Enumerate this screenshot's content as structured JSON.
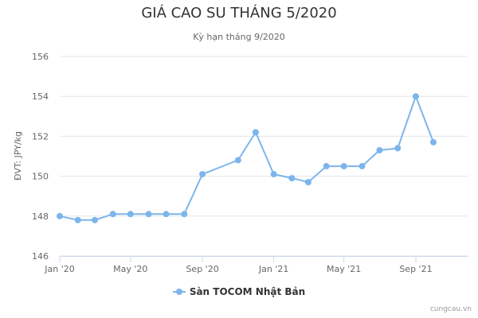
{
  "chart_data": {
    "type": "line",
    "title": "GIÁ CAO SU THÁNG 5/2020",
    "subtitle": "Kỳ hạn tháng 9/2020",
    "ylabel": "ĐVT: JPY/kg",
    "ylim": [
      146,
      156
    ],
    "yticks": [
      146,
      148,
      150,
      152,
      154,
      156
    ],
    "xlim": [
      "2020-01-01",
      "2021-11-30"
    ],
    "xticks": [
      {
        "date": "2020-01-01",
        "label": "Jan '20"
      },
      {
        "date": "2020-05-01",
        "label": "May '20"
      },
      {
        "date": "2020-09-01",
        "label": "Sep '20"
      },
      {
        "date": "2021-01-01",
        "label": "Jan '21"
      },
      {
        "date": "2021-05-01",
        "label": "May '21"
      },
      {
        "date": "2021-09-01",
        "label": "Sep '21"
      }
    ],
    "grid": true,
    "legend_position": "bottom",
    "color": "#7cb5ec",
    "series": [
      {
        "name": "Sàn TOCOM Nhật Bản",
        "points": [
          {
            "x": "2020-01-01",
            "y": 148.0
          },
          {
            "x": "2020-02-01",
            "y": 147.8
          },
          {
            "x": "2020-03-01",
            "y": 147.8
          },
          {
            "x": "2020-04-01",
            "y": 148.1
          },
          {
            "x": "2020-05-01",
            "y": 148.1
          },
          {
            "x": "2020-06-01",
            "y": 148.1
          },
          {
            "x": "2020-07-01",
            "y": 148.1
          },
          {
            "x": "2020-08-01",
            "y": 148.1
          },
          {
            "x": "2020-09-01",
            "y": 150.1
          },
          {
            "x": "2020-11-01",
            "y": 150.8
          },
          {
            "x": "2020-12-01",
            "y": 152.2
          },
          {
            "x": "2021-01-01",
            "y": 150.1
          },
          {
            "x": "2021-02-01",
            "y": 149.9
          },
          {
            "x": "2021-03-01",
            "y": 149.7
          },
          {
            "x": "2021-04-01",
            "y": 150.5
          },
          {
            "x": "2021-05-01",
            "y": 150.5
          },
          {
            "x": "2021-06-01",
            "y": 150.5
          },
          {
            "x": "2021-07-01",
            "y": 151.3
          },
          {
            "x": "2021-08-01",
            "y": 151.4
          },
          {
            "x": "2021-09-01",
            "y": 154.0
          },
          {
            "x": "2021-10-01",
            "y": 151.7
          }
        ]
      }
    ]
  },
  "credit": "cungcau.vn"
}
